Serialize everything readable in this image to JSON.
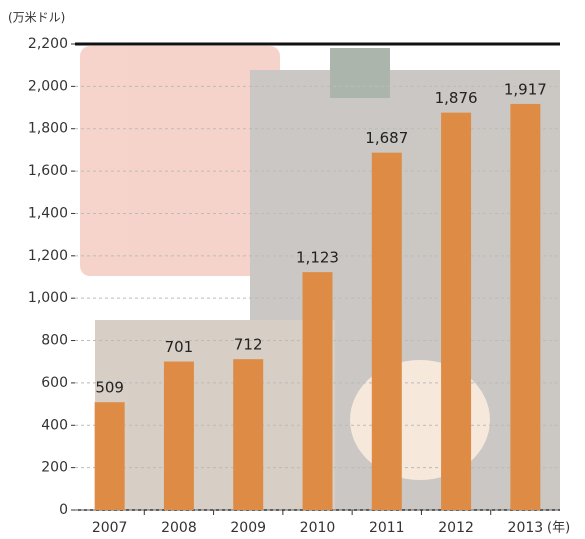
{
  "chart_data": {
    "type": "bar",
    "y_unit": "(万米ドル)",
    "x_unit": "(年)",
    "categories": [
      "2007",
      "2008",
      "2009",
      "2010",
      "2011",
      "2012",
      "2013"
    ],
    "values": [
      509,
      701,
      712,
      1123,
      1687,
      1876,
      1917
    ],
    "value_labels": [
      "509",
      "701",
      "712",
      "1,123",
      "1,687",
      "1,876",
      "1,917"
    ],
    "color": "#de8c45",
    "ylim": [
      0,
      2200
    ],
    "yticks": [
      0,
      200,
      400,
      600,
      800,
      {
        "value": 1000,
        "label": "1,000"
      },
      {
        "value": 1200,
        "label": "1,200"
      },
      {
        "value": 1400,
        "label": "1,400"
      },
      {
        "value": 1600,
        "label": "1,600"
      },
      {
        "value": 1800,
        "label": "1,800"
      },
      {
        "value": 2000,
        "label": "2,000"
      },
      {
        "value": 2200,
        "label": "2,200"
      }
    ],
    "grid": true
  }
}
